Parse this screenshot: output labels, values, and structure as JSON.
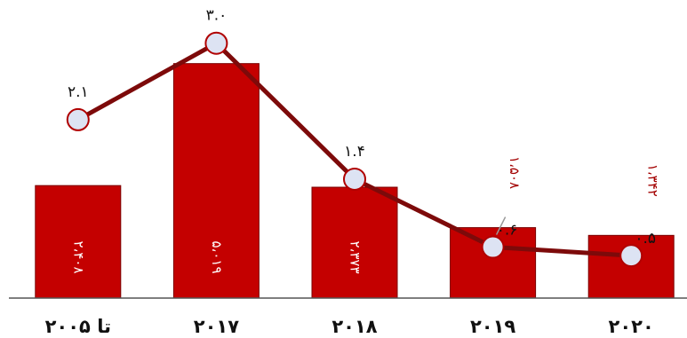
{
  "colors": {
    "bar_fill": "#c40000",
    "bar_stroke": "#7a0000",
    "line": "#7d0a0a",
    "marker_fill": "#dde3f3",
    "marker_stroke": "#b00000",
    "axis": "#555555"
  },
  "chart_data": {
    "type": "bar",
    "categories": [
      "تا ۲۰۰۵",
      "۲۰۱۷",
      "۲۰۱۸",
      "۲۰۱۹",
      "۲۰۲۰"
    ],
    "bar_values": [
      2408,
      5019,
      2373,
      1508,
      1342
    ],
    "bar_labels": [
      "۲،۴۰۸",
      "۵،۰۱۹",
      "۲،۳۷۳",
      "۱،۵۰۸",
      "۱،۳۴۲"
    ],
    "line_values": [
      2.1,
      3.0,
      1.4,
      0.6,
      0.5
    ],
    "line_labels": [
      "۲.۱",
      "۳.۰",
      "۱.۴",
      "۰.۶",
      "۰.۵"
    ],
    "bar_ylim": [
      0,
      6000
    ],
    "line_ylim": [
      0,
      3.3
    ],
    "title": "",
    "xlabel": "",
    "ylabel": "",
    "legend": false,
    "grid": false
  }
}
